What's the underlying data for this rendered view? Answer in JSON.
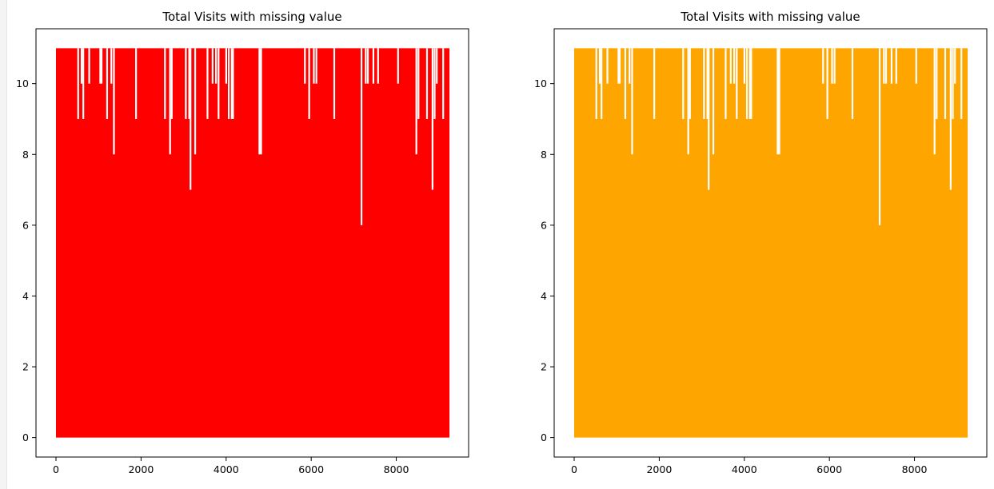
{
  "chart_data": [
    {
      "type": "line",
      "title": "Total Visits with missing value",
      "xlabel": "",
      "ylabel": "",
      "color": "#ff0000",
      "xlim": [
        -470,
        9700
      ],
      "ylim": [
        -0.55,
        11.55
      ],
      "xticks": [
        0,
        2000,
        4000,
        6000,
        8000
      ],
      "yticks": [
        0,
        2,
        4,
        6,
        8,
        10
      ],
      "x_range": [
        0,
        9250
      ],
      "y_baseline": 0,
      "y_max": 11,
      "dips": [
        {
          "x": 520,
          "y": 9
        },
        {
          "x": 600,
          "y": 10
        },
        {
          "x": 640,
          "y": 9
        },
        {
          "x": 780,
          "y": 10
        },
        {
          "x": 1040,
          "y": 10
        },
        {
          "x": 1070,
          "y": 10
        },
        {
          "x": 1200,
          "y": 9
        },
        {
          "x": 1300,
          "y": 10
        },
        {
          "x": 1360,
          "y": 8
        },
        {
          "x": 1880,
          "y": 9
        },
        {
          "x": 2560,
          "y": 9
        },
        {
          "x": 2680,
          "y": 8
        },
        {
          "x": 2720,
          "y": 9
        },
        {
          "x": 3050,
          "y": 9
        },
        {
          "x": 3130,
          "y": 9
        },
        {
          "x": 3160,
          "y": 7
        },
        {
          "x": 3270,
          "y": 8
        },
        {
          "x": 3560,
          "y": 9
        },
        {
          "x": 3680,
          "y": 10
        },
        {
          "x": 3760,
          "y": 10
        },
        {
          "x": 3820,
          "y": 9
        },
        {
          "x": 4000,
          "y": 10
        },
        {
          "x": 4060,
          "y": 9
        },
        {
          "x": 4130,
          "y": 9
        },
        {
          "x": 4160,
          "y": 9
        },
        {
          "x": 4780,
          "y": 8
        },
        {
          "x": 4820,
          "y": 8
        },
        {
          "x": 5850,
          "y": 10
        },
        {
          "x": 5950,
          "y": 9
        },
        {
          "x": 6060,
          "y": 10
        },
        {
          "x": 6120,
          "y": 10
        },
        {
          "x": 6540,
          "y": 9
        },
        {
          "x": 7180,
          "y": 6
        },
        {
          "x": 7280,
          "y": 10
        },
        {
          "x": 7330,
          "y": 10
        },
        {
          "x": 7460,
          "y": 10
        },
        {
          "x": 7570,
          "y": 10
        },
        {
          "x": 8040,
          "y": 10
        },
        {
          "x": 8470,
          "y": 8
        },
        {
          "x": 8520,
          "y": 9
        },
        {
          "x": 8720,
          "y": 9
        },
        {
          "x": 8850,
          "y": 7
        },
        {
          "x": 8900,
          "y": 9
        },
        {
          "x": 8950,
          "y": 10
        },
        {
          "x": 9100,
          "y": 9
        }
      ]
    },
    {
      "type": "line",
      "title": "Total Visits with missing value",
      "xlabel": "",
      "ylabel": "",
      "color": "#ffa500",
      "xlim": [
        -470,
        9700
      ],
      "ylim": [
        -0.55,
        11.55
      ],
      "xticks": [
        0,
        2000,
        4000,
        6000,
        8000
      ],
      "yticks": [
        0,
        2,
        4,
        6,
        8,
        10
      ],
      "x_range": [
        0,
        9250
      ],
      "y_baseline": 0,
      "y_max": 11,
      "dips": [
        {
          "x": 520,
          "y": 9
        },
        {
          "x": 600,
          "y": 10
        },
        {
          "x": 640,
          "y": 9
        },
        {
          "x": 780,
          "y": 10
        },
        {
          "x": 1040,
          "y": 10
        },
        {
          "x": 1070,
          "y": 10
        },
        {
          "x": 1200,
          "y": 9
        },
        {
          "x": 1300,
          "y": 10
        },
        {
          "x": 1360,
          "y": 8
        },
        {
          "x": 1880,
          "y": 9
        },
        {
          "x": 2560,
          "y": 9
        },
        {
          "x": 2680,
          "y": 8
        },
        {
          "x": 2720,
          "y": 9
        },
        {
          "x": 3050,
          "y": 9
        },
        {
          "x": 3130,
          "y": 9
        },
        {
          "x": 3160,
          "y": 7
        },
        {
          "x": 3270,
          "y": 8
        },
        {
          "x": 3560,
          "y": 9
        },
        {
          "x": 3680,
          "y": 10
        },
        {
          "x": 3760,
          "y": 10
        },
        {
          "x": 3820,
          "y": 9
        },
        {
          "x": 4000,
          "y": 10
        },
        {
          "x": 4060,
          "y": 9
        },
        {
          "x": 4130,
          "y": 9
        },
        {
          "x": 4160,
          "y": 9
        },
        {
          "x": 4780,
          "y": 8
        },
        {
          "x": 4820,
          "y": 8
        },
        {
          "x": 5850,
          "y": 10
        },
        {
          "x": 5950,
          "y": 9
        },
        {
          "x": 6060,
          "y": 10
        },
        {
          "x": 6120,
          "y": 10
        },
        {
          "x": 6540,
          "y": 9
        },
        {
          "x": 7180,
          "y": 6
        },
        {
          "x": 7280,
          "y": 10
        },
        {
          "x": 7330,
          "y": 10
        },
        {
          "x": 7460,
          "y": 10
        },
        {
          "x": 7570,
          "y": 10
        },
        {
          "x": 8040,
          "y": 10
        },
        {
          "x": 8470,
          "y": 8
        },
        {
          "x": 8520,
          "y": 9
        },
        {
          "x": 8720,
          "y": 9
        },
        {
          "x": 8850,
          "y": 7
        },
        {
          "x": 8900,
          "y": 9
        },
        {
          "x": 8950,
          "y": 10
        },
        {
          "x": 9100,
          "y": 9
        }
      ]
    }
  ]
}
